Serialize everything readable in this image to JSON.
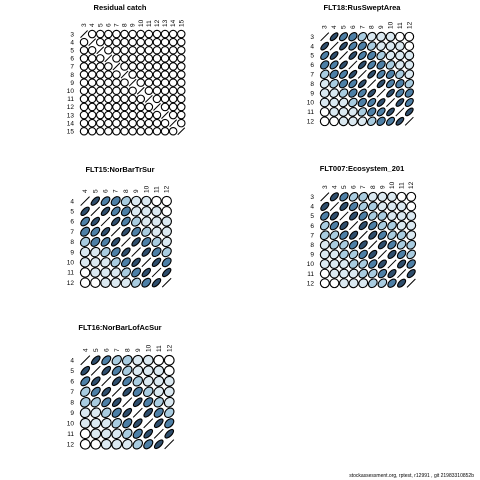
{
  "chart_data": [
    {
      "type": "heatmap",
      "title": "Residual catch",
      "ages": [
        "3",
        "4",
        "5",
        "6",
        "7",
        "8",
        "9",
        "10",
        "11",
        "12",
        "13",
        "14",
        "15"
      ],
      "correlations": [
        [
          1.0,
          0.0,
          0.0,
          0.0,
          0.0,
          0.0,
          0.0,
          0.0,
          0.0,
          0.0,
          0.0,
          0.0,
          0.0
        ],
        [
          0.0,
          1.0,
          0.0,
          0.0,
          0.0,
          0.0,
          0.0,
          0.0,
          0.0,
          0.0,
          0.0,
          0.0,
          0.0
        ],
        [
          0.0,
          0.0,
          1.0,
          0.0,
          0.0,
          0.0,
          0.0,
          0.0,
          0.0,
          0.0,
          0.0,
          0.0,
          0.0
        ],
        [
          0.0,
          0.0,
          0.0,
          1.0,
          0.0,
          0.0,
          0.0,
          0.0,
          0.0,
          0.0,
          0.0,
          0.0,
          0.0
        ],
        [
          0.0,
          0.0,
          0.0,
          0.0,
          1.0,
          0.0,
          0.0,
          0.0,
          0.0,
          0.0,
          0.0,
          0.0,
          0.0
        ],
        [
          0.0,
          0.0,
          0.0,
          0.0,
          0.0,
          1.0,
          0.0,
          0.0,
          0.0,
          0.0,
          0.0,
          0.0,
          0.0
        ],
        [
          0.0,
          0.0,
          0.0,
          0.0,
          0.0,
          0.0,
          1.0,
          0.0,
          0.0,
          0.0,
          0.0,
          0.0,
          0.0
        ],
        [
          0.0,
          0.0,
          0.0,
          0.0,
          0.0,
          0.0,
          0.0,
          1.0,
          0.0,
          0.0,
          0.0,
          0.0,
          0.0
        ],
        [
          0.0,
          0.0,
          0.0,
          0.0,
          0.0,
          0.0,
          0.0,
          0.0,
          1.0,
          0.0,
          0.0,
          0.0,
          0.0
        ],
        [
          0.0,
          0.0,
          0.0,
          0.0,
          0.0,
          0.0,
          0.0,
          0.0,
          0.0,
          1.0,
          0.0,
          0.0,
          0.0
        ],
        [
          0.0,
          0.0,
          0.0,
          0.0,
          0.0,
          0.0,
          0.0,
          0.0,
          0.0,
          0.0,
          1.0,
          0.0,
          0.0
        ],
        [
          0.0,
          0.0,
          0.0,
          0.0,
          0.0,
          0.0,
          0.0,
          0.0,
          0.0,
          0.0,
          0.0,
          1.0,
          0.0
        ],
        [
          0.0,
          0.0,
          0.0,
          0.0,
          0.0,
          0.0,
          0.0,
          0.0,
          0.0,
          0.0,
          0.0,
          0.0,
          1.0
        ]
      ]
    },
    {
      "type": "heatmap",
      "title": "FLT18:RusSweptArea",
      "ages": [
        "3",
        "4",
        "5",
        "6",
        "7",
        "8",
        "9",
        "10",
        "11",
        "12"
      ],
      "correlations": [
        [
          1.0,
          0.85,
          0.75,
          0.65,
          0.55,
          0.4,
          0.2,
          0.1,
          0.0,
          0.0
        ],
        [
          0.85,
          1.0,
          0.85,
          0.75,
          0.65,
          0.55,
          0.4,
          0.2,
          0.1,
          0.0
        ],
        [
          0.75,
          0.85,
          1.0,
          0.85,
          0.75,
          0.65,
          0.55,
          0.4,
          0.2,
          0.1
        ],
        [
          0.65,
          0.75,
          0.85,
          1.0,
          0.85,
          0.75,
          0.65,
          0.55,
          0.4,
          0.2
        ],
        [
          0.55,
          0.65,
          0.75,
          0.85,
          1.0,
          0.85,
          0.75,
          0.65,
          0.55,
          0.4
        ],
        [
          0.4,
          0.55,
          0.65,
          0.75,
          0.85,
          1.0,
          0.85,
          0.75,
          0.65,
          0.55
        ],
        [
          0.2,
          0.4,
          0.55,
          0.65,
          0.75,
          0.85,
          1.0,
          0.85,
          0.75,
          0.65
        ],
        [
          0.1,
          0.2,
          0.4,
          0.55,
          0.65,
          0.75,
          0.85,
          1.0,
          0.85,
          0.75
        ],
        [
          0.0,
          0.1,
          0.2,
          0.4,
          0.55,
          0.65,
          0.75,
          0.85,
          1.0,
          0.85
        ],
        [
          0.0,
          0.0,
          0.1,
          0.2,
          0.4,
          0.55,
          0.65,
          0.75,
          0.85,
          1.0
        ]
      ]
    },
    {
      "type": "heatmap",
      "title": "FLT15:NorBarTrSur",
      "ages": [
        "4",
        "5",
        "6",
        "7",
        "8",
        "9",
        "10",
        "11",
        "12"
      ],
      "correlations": [
        [
          1.0,
          0.85,
          0.75,
          0.65,
          0.5,
          0.25,
          0.1,
          0.0,
          0.0
        ],
        [
          0.85,
          1.0,
          0.85,
          0.75,
          0.65,
          0.4,
          0.25,
          0.1,
          0.0
        ],
        [
          0.75,
          0.85,
          1.0,
          0.85,
          0.75,
          0.55,
          0.4,
          0.25,
          0.1
        ],
        [
          0.65,
          0.75,
          0.85,
          1.0,
          0.85,
          0.7,
          0.55,
          0.4,
          0.25
        ],
        [
          0.5,
          0.65,
          0.75,
          0.85,
          1.0,
          0.85,
          0.7,
          0.55,
          0.4
        ],
        [
          0.25,
          0.4,
          0.55,
          0.7,
          0.85,
          1.0,
          0.85,
          0.7,
          0.55
        ],
        [
          0.1,
          0.25,
          0.4,
          0.55,
          0.7,
          0.85,
          1.0,
          0.85,
          0.7
        ],
        [
          0.0,
          0.1,
          0.25,
          0.4,
          0.55,
          0.7,
          0.85,
          1.0,
          0.85
        ],
        [
          0.0,
          0.0,
          0.1,
          0.25,
          0.4,
          0.55,
          0.7,
          0.85,
          1.0
        ]
      ]
    },
    {
      "type": "heatmap",
      "title": "FLT007:Ecosystem_201",
      "ages": [
        "3",
        "4",
        "5",
        "6",
        "7",
        "8",
        "9",
        "10",
        "11",
        "12"
      ],
      "correlations": [
        [
          1.0,
          0.8,
          0.7,
          0.6,
          0.5,
          0.35,
          0.2,
          0.1,
          0.0,
          0.0
        ],
        [
          0.8,
          1.0,
          0.8,
          0.7,
          0.6,
          0.5,
          0.35,
          0.2,
          0.1,
          0.0
        ],
        [
          0.7,
          0.8,
          1.0,
          0.8,
          0.7,
          0.6,
          0.5,
          0.35,
          0.2,
          0.1
        ],
        [
          0.6,
          0.7,
          0.8,
          1.0,
          0.8,
          0.7,
          0.6,
          0.5,
          0.35,
          0.2
        ],
        [
          0.5,
          0.6,
          0.7,
          0.8,
          1.0,
          0.8,
          0.7,
          0.6,
          0.5,
          0.35
        ],
        [
          0.35,
          0.5,
          0.6,
          0.7,
          0.8,
          1.0,
          0.8,
          0.7,
          0.6,
          0.5
        ],
        [
          0.2,
          0.35,
          0.5,
          0.6,
          0.7,
          0.8,
          1.0,
          0.8,
          0.7,
          0.6
        ],
        [
          0.1,
          0.2,
          0.35,
          0.5,
          0.6,
          0.7,
          0.8,
          1.0,
          0.8,
          0.7
        ],
        [
          0.0,
          0.1,
          0.2,
          0.35,
          0.5,
          0.6,
          0.7,
          0.8,
          1.0,
          0.8
        ],
        [
          0.0,
          0.0,
          0.1,
          0.2,
          0.35,
          0.5,
          0.6,
          0.7,
          0.8,
          1.0
        ]
      ]
    },
    {
      "type": "heatmap",
      "title": "FLT16:NorBarLofAcSur",
      "ages": [
        "4",
        "5",
        "6",
        "7",
        "8",
        "9",
        "10",
        "11",
        "12"
      ],
      "correlations": [
        [
          1.0,
          0.85,
          0.75,
          0.6,
          0.45,
          0.25,
          0.1,
          0.0,
          0.0
        ],
        [
          0.85,
          1.0,
          0.85,
          0.75,
          0.6,
          0.4,
          0.25,
          0.1,
          0.0
        ],
        [
          0.75,
          0.85,
          1.0,
          0.85,
          0.75,
          0.55,
          0.4,
          0.25,
          0.1
        ],
        [
          0.6,
          0.75,
          0.85,
          1.0,
          0.85,
          0.7,
          0.55,
          0.4,
          0.25
        ],
        [
          0.45,
          0.6,
          0.75,
          0.85,
          1.0,
          0.85,
          0.7,
          0.55,
          0.4
        ],
        [
          0.25,
          0.4,
          0.55,
          0.7,
          0.85,
          1.0,
          0.85,
          0.7,
          0.55
        ],
        [
          0.1,
          0.25,
          0.4,
          0.55,
          0.7,
          0.85,
          1.0,
          0.85,
          0.7
        ],
        [
          0.0,
          0.1,
          0.25,
          0.4,
          0.55,
          0.7,
          0.85,
          1.0,
          0.85
        ],
        [
          0.0,
          0.0,
          0.1,
          0.25,
          0.4,
          0.55,
          0.7,
          0.85,
          1.0
        ]
      ]
    }
  ],
  "footer": "stockassessment.org, rptest, r12991 , git 21983310852b",
  "colors": {
    "background": "#ffffff",
    "stroke": "#000000",
    "fill_light": "#dbe9f1",
    "fill_mid": "#a9cce0",
    "fill_dark": "#4d7fa6",
    "fill_darkest": "#2e4d6b"
  }
}
